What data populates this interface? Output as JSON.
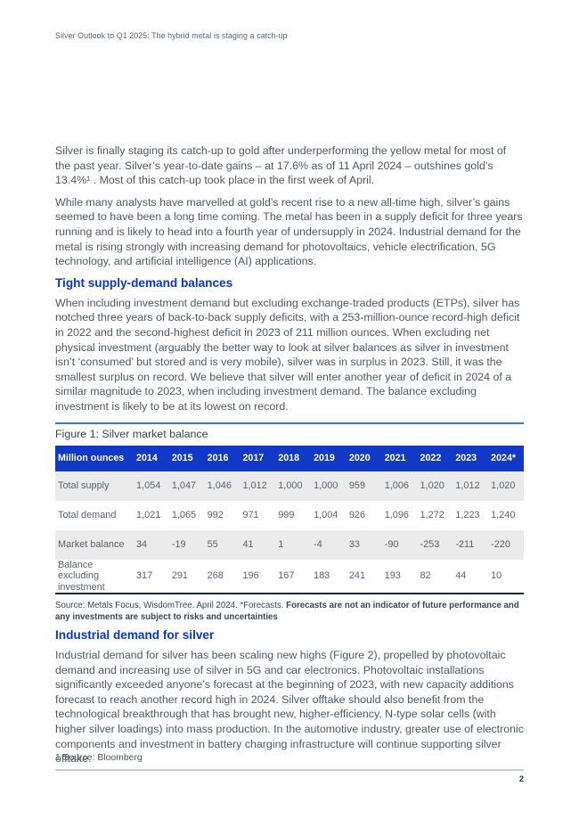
{
  "page": {
    "running_header": "Silver Outlook to Q1 2025: The hybrid metal is staging a catch-up",
    "page_number": "2"
  },
  "colors": {
    "brand_blue_heading": "#0537d3",
    "table_header_bg": "#1138c7",
    "figure_rule_blue": "#3d74dc",
    "body_text": "#4f5962",
    "table_bottom_border": "#1c2740",
    "row_stripe": "#ebebeb"
  },
  "body": {
    "para1": "Silver is finally staging its catch-up to gold after underperforming the yellow metal for most of the past year. Silver’s year-to-date gains – at 17.6% as of 11 April 2024 – outshines gold’s 13.4%¹ . Most of this catch-up took place in the first week of April.",
    "para2": "While many analysts have marvelled at gold’s recent rise to a new all-time high, silver’s gains seemed to have been a long time coming. The metal has been in a supply deficit for three years running and is likely to head into a fourth year of undersupply in 2024. Industrial demand for the metal is rising strongly with increasing demand for photovoltaics, vehicle electrification, 5G technology, and artificial intelligence (AI) applications.",
    "section1_heading": "Tight supply-demand balances",
    "para3": "When including investment demand but excluding exchange-traded products (ETPs), silver has notched three years of back-to-back supply deficits, with a 253-million-ounce record-high deficit in 2022 and the second-highest deficit in 2023 of 211 million ounces. When excluding net physical investment (arguably the better way to look at silver balances as silver in investment isn’t ‘consumed’ but stored and is very mobile), silver was in surplus in 2023. Still, it was the smallest surplus on record. We believe that silver will enter another year of deficit in 2024 of a similar magnitude to 2023, when including investment demand. The balance excluding investment is likely to be at its lowest on record.",
    "section2_heading": "Industrial demand for silver",
    "para4": "Industrial demand for silver has been scaling new highs (Figure 2), propelled by photovoltaic demand and increasing use of silver in 5G and car electronics. Photovoltaic installations significantly exceeded anyone’s forecast at the beginning of 2023, with new capacity additions forecast to reach another record high in 2024. Silver offtake should also benefit from the technological breakthrough that has brought new, higher-efficiency, N-type solar cells (with higher silver loadings) into mass production. In the automotive industry, greater use of electronic components and investment in battery charging infrastructure will continue supporting silver offtake.",
    "footnote": "1 Source: Bloomberg"
  },
  "figure": {
    "caption": "Figure 1: Silver market balance",
    "source_regular": "Source: Metals Focus, WisdomTree. April 2024. *Forecasts. ",
    "source_bold": "Forecasts are not an indicator of future performance and any investments are subject to risks and uncertainties",
    "table": {
      "header": [
        "Million ounces",
        "2014",
        "2015",
        "2016",
        "2017",
        "2018",
        "2019",
        "2020",
        "2021",
        "2022",
        "2023",
        "2024*"
      ],
      "rows": [
        {
          "label": "Total supply",
          "values": [
            "1,054",
            "1,047",
            "1,046",
            "1,012",
            "1,000",
            "1,000",
            "959",
            "1,006",
            "1,020",
            "1,012",
            "1,020"
          ]
        },
        {
          "label": "Total demand",
          "values": [
            "1,021",
            "1,065",
            "992",
            "971",
            "999",
            "1,004",
            "926",
            "1,096",
            "1,272",
            "1,223",
            "1,240"
          ]
        },
        {
          "label": "Market balance",
          "values": [
            "34",
            "-19",
            "55",
            "41",
            "1",
            "-4",
            "33",
            "-90",
            "-253",
            "-211",
            "-220"
          ]
        },
        {
          "label": "Balance excluding investment",
          "values": [
            "317",
            "291",
            "268",
            "196",
            "167",
            "183",
            "241",
            "193",
            "82",
            "44",
            "10"
          ]
        }
      ]
    }
  }
}
